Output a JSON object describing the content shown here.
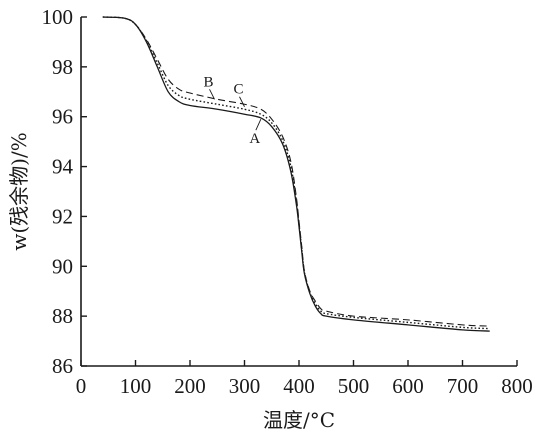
{
  "chart_data": {
    "type": "line",
    "title": "",
    "xlabel": "温度/°C",
    "ylabel": "w(残余物)/%",
    "xlim": [
      0,
      800
    ],
    "ylim": [
      86,
      100
    ],
    "xticks": [
      0,
      100,
      200,
      300,
      400,
      500,
      600,
      700,
      800
    ],
    "yticks": [
      86,
      88,
      90,
      92,
      94,
      96,
      98,
      100
    ],
    "grid": false,
    "legend": "none",
    "series": [
      {
        "name": "A",
        "style": "solid",
        "color": "#1a1a1a",
        "x": [
          40,
          80,
          100,
          120,
          140,
          160,
          180,
          200,
          250,
          300,
          330,
          350,
          370,
          385,
          395,
          400,
          405,
          410,
          420,
          430,
          440,
          450,
          500,
          600,
          700,
          750
        ],
        "y": [
          100,
          99.95,
          99.7,
          99.0,
          98.0,
          97.0,
          96.6,
          96.45,
          96.3,
          96.1,
          95.95,
          95.6,
          94.9,
          93.8,
          92.5,
          91.6,
          90.6,
          89.7,
          88.9,
          88.4,
          88.1,
          88.0,
          87.85,
          87.65,
          87.45,
          87.4
        ]
      },
      {
        "name": "B",
        "style": "dashed",
        "color": "#1a1a1a",
        "x": [
          40,
          80,
          100,
          120,
          140,
          160,
          180,
          200,
          250,
          300,
          330,
          350,
          370,
          385,
          395,
          400,
          405,
          410,
          420,
          430,
          440,
          450,
          500,
          600,
          700,
          750
        ],
        "y": [
          100,
          99.95,
          99.7,
          99.1,
          98.3,
          97.5,
          97.1,
          96.95,
          96.7,
          96.5,
          96.3,
          95.9,
          95.2,
          94.2,
          92.8,
          91.8,
          90.8,
          89.8,
          89.0,
          88.6,
          88.3,
          88.2,
          88.0,
          87.85,
          87.65,
          87.6
        ]
      },
      {
        "name": "C",
        "style": "dotted",
        "color": "#1a1a1a",
        "x": [
          40,
          80,
          100,
          120,
          140,
          160,
          180,
          200,
          250,
          300,
          330,
          350,
          370,
          385,
          395,
          400,
          405,
          410,
          420,
          430,
          440,
          450,
          500,
          600,
          700,
          750
        ],
        "y": [
          100,
          99.95,
          99.7,
          99.05,
          98.15,
          97.25,
          96.85,
          96.7,
          96.5,
          96.3,
          96.1,
          95.75,
          95.05,
          94.0,
          92.65,
          91.7,
          90.7,
          89.75,
          88.95,
          88.5,
          88.2,
          88.1,
          87.95,
          87.75,
          87.55,
          87.5
        ]
      }
    ],
    "annotations": [
      {
        "text": "A",
        "x": 330,
        "y": 95.9,
        "position": "below"
      },
      {
        "text": "B",
        "x": 245,
        "y": 96.7,
        "position": "above"
      },
      {
        "text": "C",
        "x": 300,
        "y": 96.4,
        "position": "above"
      }
    ]
  }
}
